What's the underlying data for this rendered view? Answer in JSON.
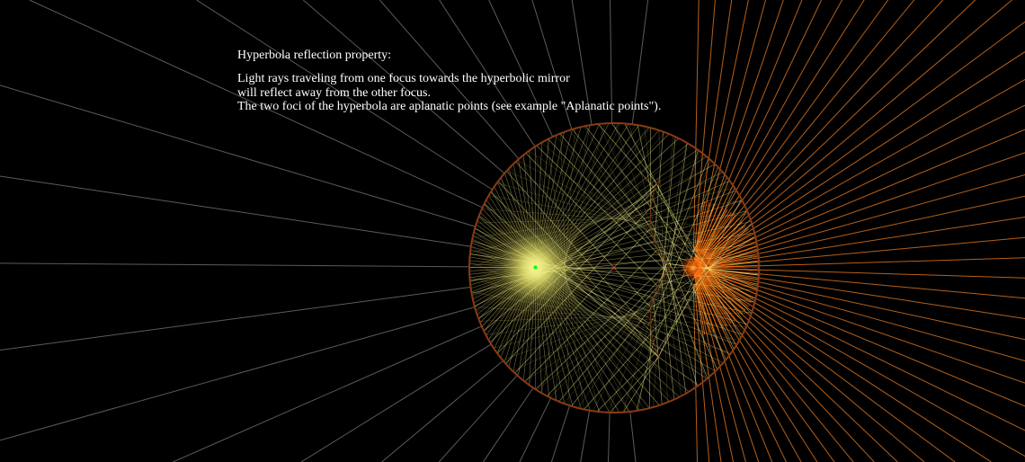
{
  "text": {
    "title": "Hyperbola reflection property:",
    "lines": [
      "Light rays traveling from one focus towards the hyperbolic mirror",
      "will reflect away from the other focus.",
      "The two foci of the hyperbola are aplanatic points (see example \"Aplanatic points\")."
    ]
  },
  "colors": {
    "background": "#000000",
    "text": "#ffffff",
    "incident_rays": "#f3f08a",
    "glow": "#ffff80",
    "reflected_rays_inner": "#ff6a00",
    "reflected_rays_outer": "#c96a1e",
    "diverging_rays": "#7a7a7a",
    "circle": "#8a3a14",
    "focus_point": "#00ff00",
    "virtual_focus": "#ff5a00"
  },
  "icons": {
    "focus": "green-dot",
    "glow": "radial-glow"
  }
}
